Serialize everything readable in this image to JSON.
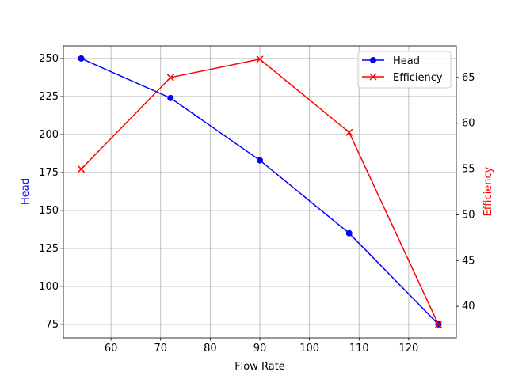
{
  "chart_data": {
    "type": "line",
    "title": "",
    "xlabel": "Flow Rate",
    "x": [
      54,
      72,
      90,
      108,
      126
    ],
    "xlim": [
      50.4,
      129.6
    ],
    "xticks": [
      60,
      70,
      80,
      90,
      100,
      110,
      120
    ],
    "grid": true,
    "legend_position": "top-right",
    "axes": {
      "left": {
        "label": "Head",
        "color": "#0000ff",
        "ylim": [
          66.1,
          258.3
        ],
        "ticks": [
          75,
          100,
          125,
          150,
          175,
          200,
          225,
          250
        ]
      },
      "right": {
        "label": "Efficiency",
        "color": "#ff0000",
        "ylim": [
          36.55,
          68.45
        ],
        "ticks": [
          40,
          45,
          50,
          55,
          60,
          65
        ]
      }
    },
    "series": [
      {
        "name": "Head",
        "axis": "left",
        "color": "#0000ff",
        "marker": "circle",
        "values": [
          250,
          224,
          183,
          135,
          75
        ]
      },
      {
        "name": "Efficiency",
        "axis": "right",
        "color": "#ff0000",
        "marker": "x",
        "values": [
          55,
          65,
          67,
          59,
          38
        ]
      }
    ]
  }
}
